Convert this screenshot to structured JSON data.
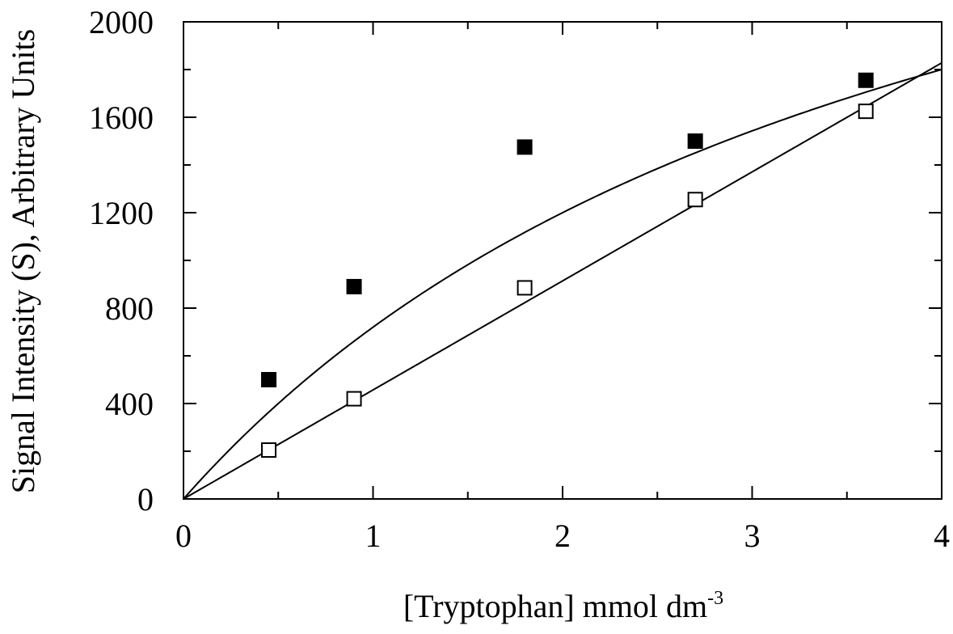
{
  "chart_data": {
    "type": "scatter",
    "title": "",
    "xlabel": "[Tryptophan] mmol dm",
    "xlabel_superscript": "-3",
    "ylabel": "Signal Intensity (S), Arbitrary Units",
    "xlim": [
      0,
      4
    ],
    "ylim": [
      0,
      2000
    ],
    "x_ticks": [
      "0",
      "1",
      "2",
      "3",
      "4"
    ],
    "y_ticks": [
      "0",
      "400",
      "800",
      "1200",
      "1600",
      "2000"
    ],
    "grid": false,
    "legend": "none",
    "series": [
      {
        "marker": "filled-square",
        "color": "#000000",
        "x": [
          0.45,
          0.9,
          1.8,
          2.7,
          3.6
        ],
        "y": [
          500,
          890,
          1475,
          1500,
          1755
        ],
        "fit": {
          "kind": "saturation",
          "smax": 3600,
          "k": 4.0
        }
      },
      {
        "marker": "open-square",
        "color": "#000000",
        "x": [
          0.45,
          0.9,
          1.8,
          2.7,
          3.6
        ],
        "y": [
          205,
          420,
          885,
          1255,
          1625
        ],
        "fit": {
          "kind": "linear",
          "slope": 457,
          "intercept": 0
        }
      }
    ]
  }
}
